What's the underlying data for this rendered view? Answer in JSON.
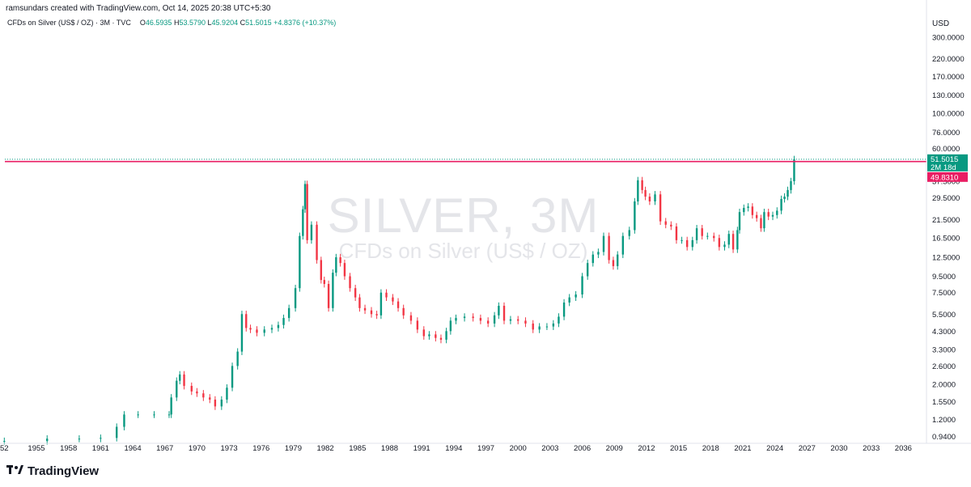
{
  "header": {
    "credit": "ramsundars created with TradingView.com, Oct 14, 2025 20:38 UTC+5:30",
    "symbol": "CFDs on Silver (US$ / OZ) · 3M · TVC",
    "o_label": "O",
    "o_value": "46.5935",
    "h_label": "H",
    "h_value": "53.5790",
    "l_label": "L",
    "l_value": "45.9204",
    "c_label": "C",
    "c_value": "51.5015",
    "change": "+4.8376 (+10.37%)"
  },
  "currency": "USD",
  "watermark": {
    "title": "SILVER, 3M",
    "subtitle": "CFDs on Silver (US$ / OZ)"
  },
  "logo": {
    "text": "TradingView"
  },
  "price_label": {
    "price": "51.5015",
    "countdown": "2M 18d"
  },
  "level_label": "49.8310",
  "colors": {
    "up": "#089981",
    "down": "#f23645",
    "level_line": "#e91e63",
    "level_tag": "#e91e63"
  },
  "chart_data": {
    "type": "candlestick",
    "scale": "log",
    "currency": "USD",
    "interval": "3M",
    "ylim": [
      0.9,
      330
    ],
    "xlim": [
      1952,
      2038
    ],
    "y_ticks": [
      "300.0000",
      "220.0000",
      "170.0000",
      "130.0000",
      "100.0000",
      "76.0000",
      "60.0000",
      "37.5000",
      "29.5000",
      "21.5000",
      "16.5000",
      "12.5000",
      "9.5000",
      "7.5000",
      "5.5000",
      "4.3000",
      "3.3000",
      "2.6000",
      "2.0000",
      "1.5500",
      "1.2000",
      "0.9400"
    ],
    "x_ticks": [
      "52",
      "1955",
      "1958",
      "1961",
      "1964",
      "1967",
      "1970",
      "1973",
      "1976",
      "1979",
      "1982",
      "1985",
      "1988",
      "1991",
      "1994",
      "1997",
      "2000",
      "2003",
      "2006",
      "2009",
      "2012",
      "2015",
      "2018",
      "2021",
      "2024",
      "2027",
      "2030",
      "2033",
      "2036"
    ],
    "horizontal_level": 49.831,
    "last_close": 51.5015,
    "approx_closes": [
      [
        1952.0,
        0.88
      ],
      [
        1956.0,
        0.91
      ],
      [
        1959.0,
        0.91
      ],
      [
        1961.0,
        0.92
      ],
      [
        1962.5,
        1.08
      ],
      [
        1963.2,
        1.29
      ],
      [
        1964.5,
        1.29
      ],
      [
        1966.0,
        1.29
      ],
      [
        1967.4,
        1.29
      ],
      [
        1967.6,
        1.65
      ],
      [
        1968.1,
        2.1
      ],
      [
        1968.4,
        2.3
      ],
      [
        1968.8,
        1.95
      ],
      [
        1969.5,
        1.8
      ],
      [
        1970.0,
        1.75
      ],
      [
        1970.6,
        1.65
      ],
      [
        1971.2,
        1.6
      ],
      [
        1971.7,
        1.45
      ],
      [
        1972.3,
        1.6
      ],
      [
        1972.8,
        1.9
      ],
      [
        1973.3,
        2.6
      ],
      [
        1973.8,
        3.2
      ],
      [
        1974.2,
        5.5
      ],
      [
        1974.6,
        4.5
      ],
      [
        1975.0,
        4.4
      ],
      [
        1975.6,
        4.2
      ],
      [
        1976.3,
        4.4
      ],
      [
        1977.0,
        4.5
      ],
      [
        1977.6,
        4.7
      ],
      [
        1978.1,
        5.2
      ],
      [
        1978.6,
        6.0
      ],
      [
        1979.2,
        8.0
      ],
      [
        1979.6,
        17.0
      ],
      [
        1979.9,
        25.0
      ],
      [
        1980.1,
        36.0
      ],
      [
        1980.3,
        16.0
      ],
      [
        1980.7,
        20.0
      ],
      [
        1981.2,
        12.0
      ],
      [
        1981.6,
        9.0
      ],
      [
        1981.9,
        8.5
      ],
      [
        1982.3,
        6.0
      ],
      [
        1982.7,
        10.0
      ],
      [
        1983.0,
        12.5
      ],
      [
        1983.4,
        11.5
      ],
      [
        1983.8,
        9.5
      ],
      [
        1984.3,
        8.0
      ],
      [
        1984.8,
        7.0
      ],
      [
        1985.2,
        6.0
      ],
      [
        1985.7,
        5.8
      ],
      [
        1986.3,
        5.5
      ],
      [
        1986.8,
        5.4
      ],
      [
        1987.2,
        7.5
      ],
      [
        1987.7,
        7.0
      ],
      [
        1988.3,
        6.6
      ],
      [
        1988.8,
        6.0
      ],
      [
        1989.3,
        5.4
      ],
      [
        1990.0,
        5.0
      ],
      [
        1990.6,
        4.4
      ],
      [
        1991.2,
        4.0
      ],
      [
        1991.7,
        4.1
      ],
      [
        1992.3,
        3.9
      ],
      [
        1992.8,
        3.8
      ],
      [
        1993.3,
        4.3
      ],
      [
        1993.7,
        5.0
      ],
      [
        1994.2,
        5.2
      ],
      [
        1995.0,
        5.3
      ],
      [
        1995.8,
        5.2
      ],
      [
        1996.5,
        5.0
      ],
      [
        1997.2,
        4.8
      ],
      [
        1997.8,
        5.4
      ],
      [
        1998.2,
        6.2
      ],
      [
        1998.7,
        5.0
      ],
      [
        1999.3,
        5.1
      ],
      [
        2000.0,
        5.0
      ],
      [
        2000.7,
        4.8
      ],
      [
        2001.4,
        4.4
      ],
      [
        2002.0,
        4.6
      ],
      [
        2002.7,
        4.6
      ],
      [
        2003.3,
        4.8
      ],
      [
        2003.8,
        5.3
      ],
      [
        2004.3,
        6.5
      ],
      [
        2004.8,
        7.0
      ],
      [
        2005.4,
        7.3
      ],
      [
        2006.0,
        9.5
      ],
      [
        2006.5,
        11.5
      ],
      [
        2007.0,
        13.0
      ],
      [
        2007.5,
        13.5
      ],
      [
        2008.0,
        17.0
      ],
      [
        2008.5,
        12.0
      ],
      [
        2008.9,
        11.0
      ],
      [
        2009.3,
        13.0
      ],
      [
        2009.8,
        17.0
      ],
      [
        2010.4,
        18.5
      ],
      [
        2010.9,
        28.0
      ],
      [
        2011.2,
        38.0
      ],
      [
        2011.6,
        33.0
      ],
      [
        2011.9,
        30.0
      ],
      [
        2012.3,
        28.0
      ],
      [
        2012.8,
        31.0
      ],
      [
        2013.3,
        21.0
      ],
      [
        2013.8,
        20.0
      ],
      [
        2014.3,
        19.5
      ],
      [
        2014.8,
        16.0
      ],
      [
        2015.3,
        16.0
      ],
      [
        2015.8,
        14.5
      ],
      [
        2016.3,
        16.0
      ],
      [
        2016.7,
        19.0
      ],
      [
        2017.2,
        17.0
      ],
      [
        2017.7,
        17.0
      ],
      [
        2018.3,
        16.5
      ],
      [
        2018.8,
        14.5
      ],
      [
        2019.3,
        15.0
      ],
      [
        2019.7,
        17.5
      ],
      [
        2020.1,
        14.0
      ],
      [
        2020.5,
        18.5
      ],
      [
        2020.7,
        24.0
      ],
      [
        2021.1,
        25.5
      ],
      [
        2021.5,
        26.0
      ],
      [
        2021.9,
        23.0
      ],
      [
        2022.3,
        22.0
      ],
      [
        2022.7,
        19.0
      ],
      [
        2023.0,
        24.0
      ],
      [
        2023.4,
        22.5
      ],
      [
        2023.8,
        23.0
      ],
      [
        2024.2,
        24.5
      ],
      [
        2024.6,
        29.0
      ],
      [
        2024.9,
        30.0
      ],
      [
        2025.2,
        33.0
      ],
      [
        2025.5,
        37.5
      ],
      [
        2025.8,
        51.5015
      ]
    ]
  }
}
